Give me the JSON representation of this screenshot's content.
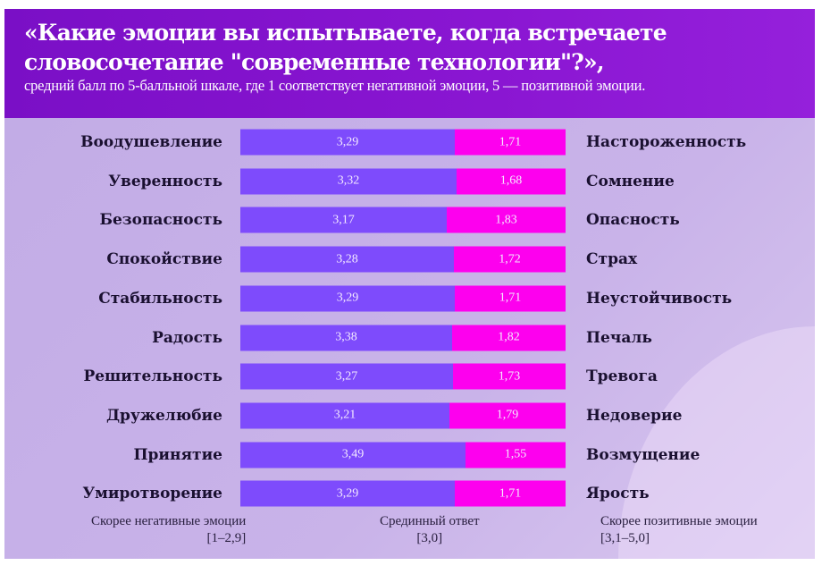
{
  "title": "«Какие эмоции вы испытываете, когда встречаете\nсловосочетание \"современные технологии\"?»,",
  "subtitle": "средний балл по 5-балльной шкале, где 1 соответствует негативной эмоции, 5 — позитивной эмоции.",
  "colors": {
    "header": "#8010cc",
    "positive_bar": "#7e4bfc",
    "negative_bar": "#fd00ee",
    "background": "#c6b0e8"
  },
  "chart_data": {
    "type": "bar",
    "orientation": "horizontal-stacked",
    "categories_left": [
      "Воодушевление",
      "Уверенность",
      "Безопасность",
      "Спокойствие",
      "Стабильность",
      "Радость",
      "Решительность",
      "Дружелюбие",
      "Принятие",
      "Умиротворение"
    ],
    "categories_right": [
      "Настороженность",
      "Сомнение",
      "Опасность",
      "Страх",
      "Неустойчивость",
      "Печаль",
      "Тревога",
      "Недоверие",
      "Возмущение",
      "Ярость"
    ],
    "series": [
      {
        "values": [
          3.29,
          3.32,
          3.17,
          3.28,
          3.29,
          3.38,
          3.27,
          3.21,
          3.49,
          3.29
        ],
        "labels": [
          "3,29",
          "3,32",
          "3,17",
          "3,28",
          "3,29",
          "3,38",
          "3,27",
          "3,21",
          "3,49",
          "3,29"
        ]
      },
      {
        "values": [
          1.71,
          1.68,
          1.83,
          1.72,
          1.71,
          1.82,
          1.73,
          1.79,
          1.55,
          1.71
        ],
        "labels": [
          "1,71",
          "1,68",
          "1,83",
          "1,72",
          "1,71",
          "1,82",
          "1,73",
          "1,79",
          "1,55",
          "1,71"
        ]
      }
    ]
  },
  "legend": {
    "negative": {
      "label": "Скорее негативные эмоции",
      "range": "[1–2,9]"
    },
    "median": {
      "label": "Срединный ответ",
      "range": "[3,0]"
    },
    "positive": {
      "label": "Скорее позитивные эмоции",
      "range": "[3,1–5,0]"
    }
  }
}
